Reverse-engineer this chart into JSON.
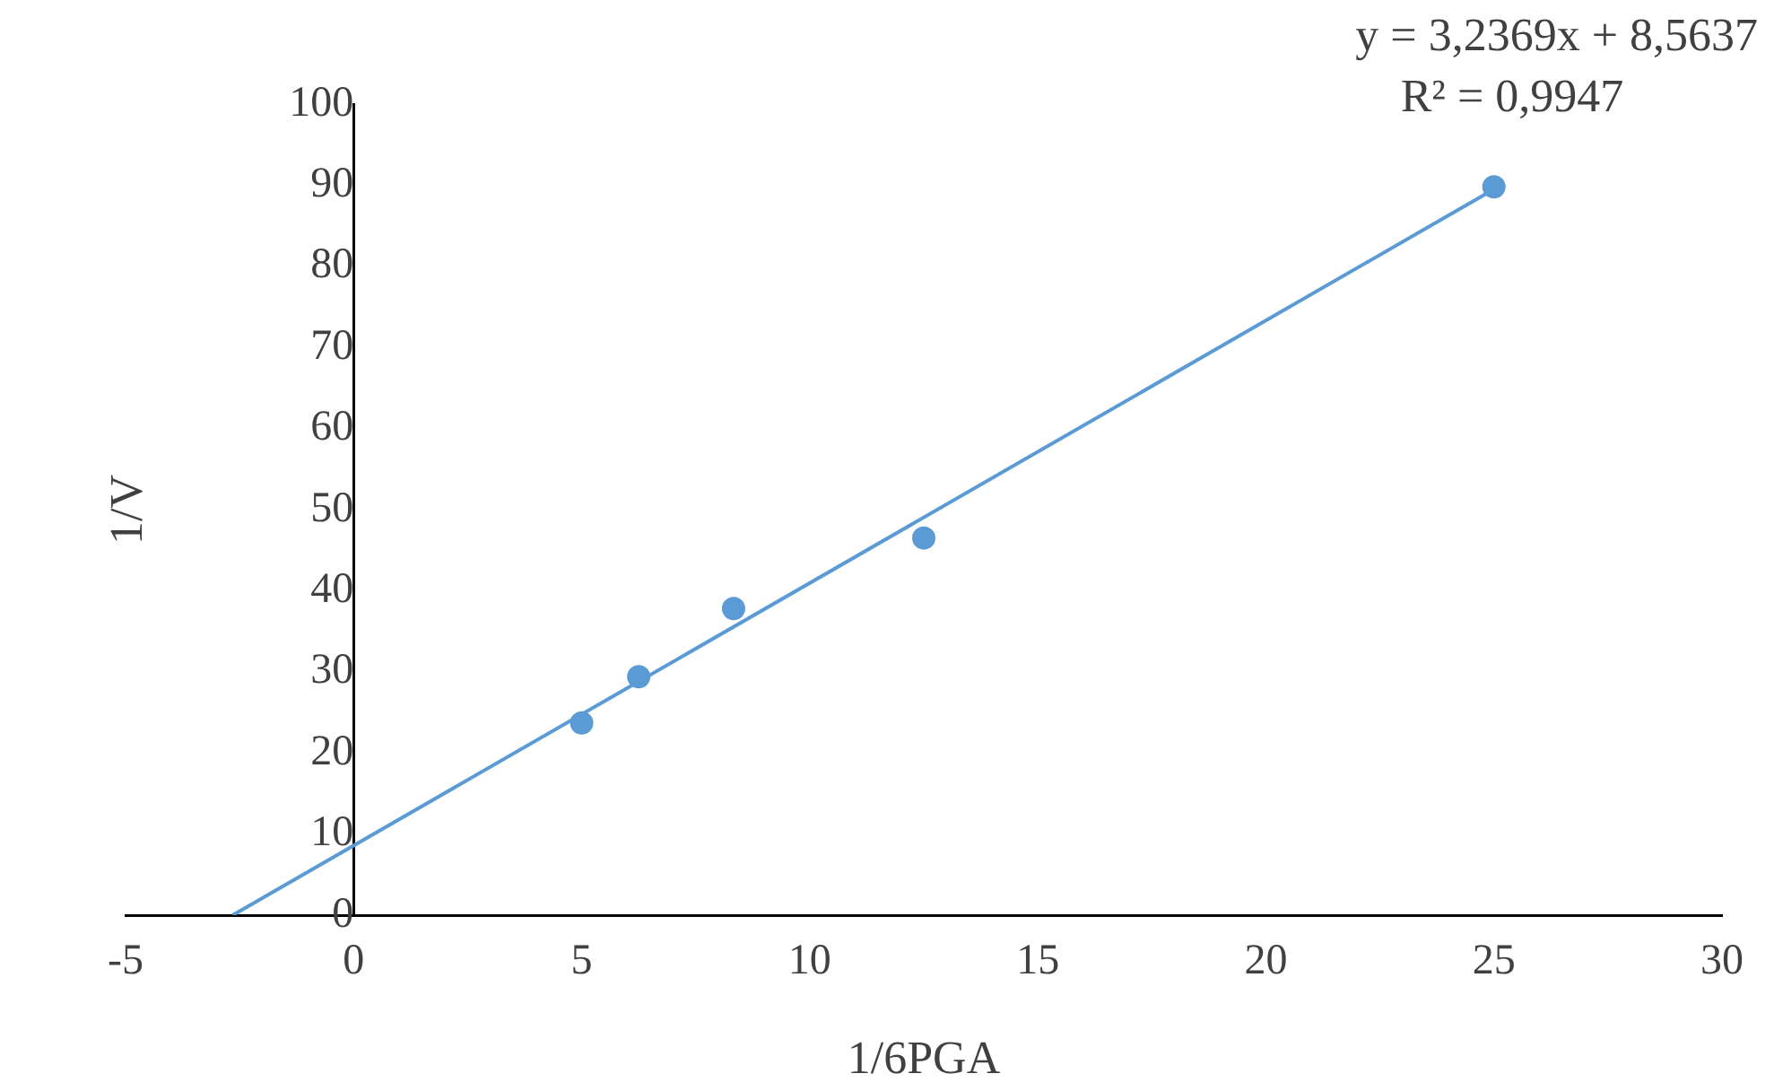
{
  "chart_data": {
    "type": "scatter",
    "xlabel": "1/6PGA",
    "ylabel": "1/V",
    "marker": "circle",
    "grid": false,
    "legend": false,
    "xlim": [
      -5,
      30
    ],
    "xticks": [
      -5,
      0,
      5,
      10,
      15,
      20,
      25,
      30
    ],
    "ylim": [
      0,
      100
    ],
    "yticks": [
      0,
      10,
      20,
      30,
      40,
      50,
      60,
      70,
      80,
      90,
      100
    ],
    "series": [
      {
        "type": "scatter",
        "color": "#5b9bd5",
        "x": [
          5,
          6.25,
          8.33,
          12.5,
          25
        ],
        "values": [
          23.7,
          29.4,
          37.8,
          46.5,
          89.8
        ]
      },
      {
        "type": "line",
        "color": "#5b9bd5",
        "marker": "none",
        "x": [
          -2.65,
          25
        ],
        "values": [
          0,
          89.5
        ]
      }
    ],
    "annotations": [
      "y = 3,2369x + 8,5637",
      "R² = 0,9947"
    ]
  }
}
